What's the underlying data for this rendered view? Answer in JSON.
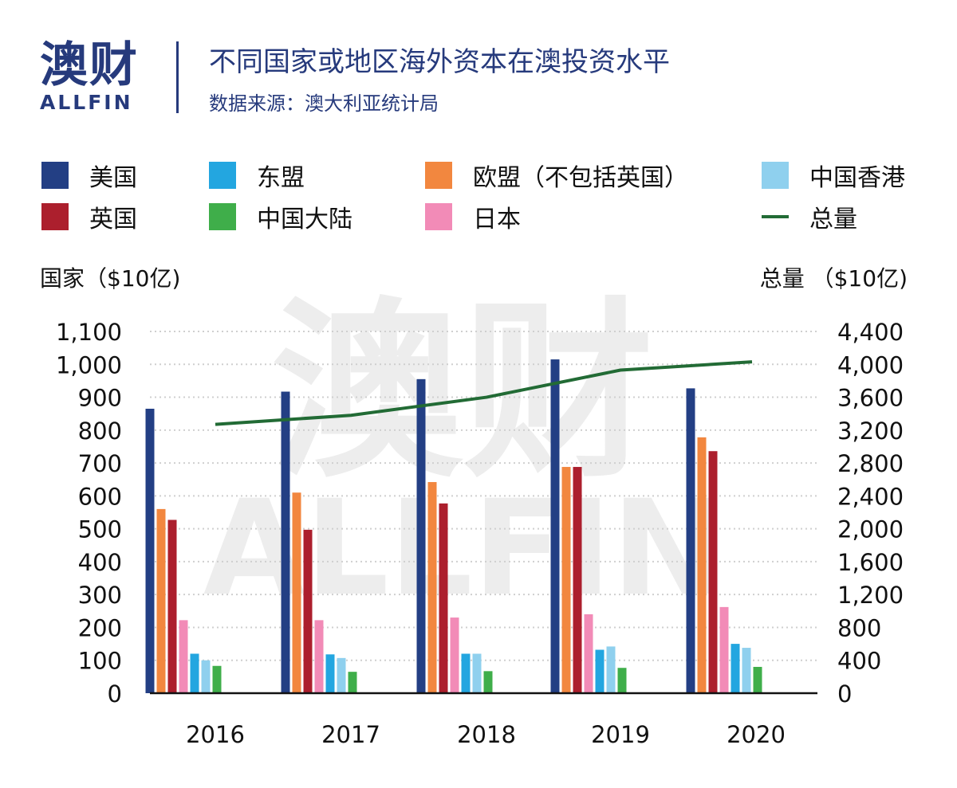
{
  "logo": {
    "cn": "澳财",
    "en": "ALLFIN"
  },
  "header": {
    "title": "不同国家或地区海外资本在澳投资水平",
    "subtitle": "数据来源：澳大利亚统计局"
  },
  "watermark": {
    "cn": "澳财",
    "en": "ALLFIN"
  },
  "colors": {
    "usa": "#233f84",
    "asean": "#23a6e0",
    "eu": "#f2873f",
    "hk": "#8fd0ee",
    "uk": "#ac1f2d",
    "china": "#3fae4a",
    "japan": "#f28bb7",
    "total": "#226b35"
  },
  "chart_data": {
    "type": "bar",
    "title": "不同国家或地区海外资本在澳投资水平",
    "categories": [
      "2016",
      "2017",
      "2018",
      "2019",
      "2020"
    ],
    "ylabel": "国家（$10亿)",
    "y2label": "总量 （$10亿)",
    "ylim": [
      0,
      1100
    ],
    "y2lim": [
      0,
      4400
    ],
    "yticks": [
      "0",
      "100",
      "200",
      "300",
      "400",
      "500",
      "600",
      "700",
      "800",
      "900",
      "1,000",
      "1,100"
    ],
    "y2ticks": [
      "0",
      "400",
      "800",
      "1,200",
      "1,600",
      "2,000",
      "2,400",
      "2,800",
      "3,200",
      "3,600",
      "4,000",
      "4,400"
    ],
    "grid": "horizontal dotted",
    "legend_position": "top",
    "series": [
      {
        "name": "美国",
        "key": "usa",
        "values": [
          865,
          917,
          955,
          1015,
          927
        ]
      },
      {
        "name": "欧盟（不包括英国）",
        "key": "eu",
        "values": [
          560,
          610,
          642,
          688,
          778
        ]
      },
      {
        "name": "英国",
        "key": "uk",
        "values": [
          527,
          497,
          577,
          688,
          736
        ]
      },
      {
        "name": "日本",
        "key": "japan",
        "values": [
          222,
          222,
          230,
          240,
          262
        ]
      },
      {
        "name": "东盟",
        "key": "asean",
        "values": [
          120,
          118,
          120,
          132,
          150
        ]
      },
      {
        "name": "中国香港",
        "key": "hk",
        "values": [
          100,
          107,
          120,
          142,
          138
        ]
      },
      {
        "name": "中国大陆",
        "key": "china",
        "values": [
          83,
          65,
          67,
          77,
          80
        ]
      }
    ],
    "line_series": {
      "name": "总量",
      "key": "total",
      "axis": "right",
      "values": [
        3270,
        3380,
        3600,
        3930,
        4030
      ]
    }
  },
  "legend": [
    {
      "label": "美国",
      "key": "usa",
      "kind": "box"
    },
    {
      "label": "东盟",
      "key": "asean",
      "kind": "box"
    },
    {
      "label": "欧盟（不包括英国）",
      "key": "eu",
      "kind": "box"
    },
    {
      "label": "中国香港",
      "key": "hk",
      "kind": "box"
    },
    {
      "label": "英国",
      "key": "uk",
      "kind": "box"
    },
    {
      "label": "中国大陆",
      "key": "china",
      "kind": "box"
    },
    {
      "label": "日本",
      "key": "japan",
      "kind": "box"
    },
    {
      "label": "总量",
      "key": "total",
      "kind": "line"
    }
  ]
}
